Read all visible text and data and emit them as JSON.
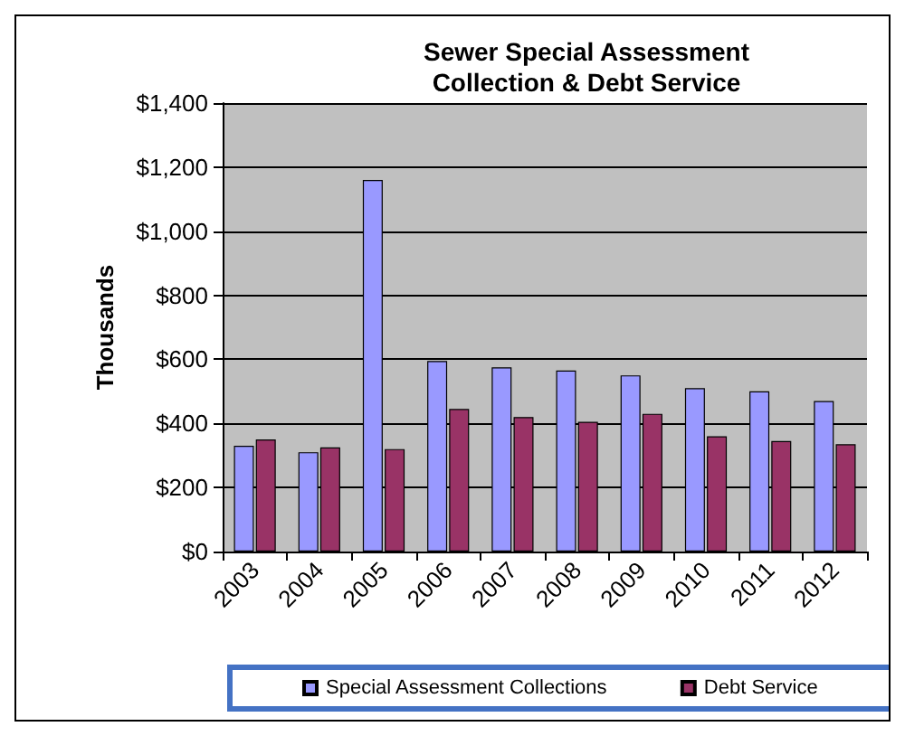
{
  "chart_data": {
    "type": "bar",
    "title": "Sewer Special Assessment\nCollection & Debt Service",
    "ylabel": "Thousands",
    "categories": [
      "2003",
      "2004",
      "2005",
      "2006",
      "2007",
      "2008",
      "2009",
      "2010",
      "2011",
      "2012"
    ],
    "series": [
      {
        "name": "Special Assessment Collections",
        "color": "#9999ff",
        "values": [
          330,
          310,
          1160,
          595,
          575,
          565,
          550,
          510,
          500,
          470
        ]
      },
      {
        "name": "Debt Service",
        "color": "#993366",
        "values": [
          350,
          325,
          320,
          445,
          420,
          405,
          430,
          360,
          345,
          335
        ]
      }
    ],
    "ylim": [
      0,
      1400
    ],
    "yticks": [
      {
        "value": 0,
        "label": "$0"
      },
      {
        "value": 200,
        "label": "$200"
      },
      {
        "value": 400,
        "label": "$400"
      },
      {
        "value": 600,
        "label": "$600"
      },
      {
        "value": 800,
        "label": "$800"
      },
      {
        "value": 1000,
        "label": "$1,000"
      },
      {
        "value": 1200,
        "label": "$1,200"
      },
      {
        "value": 1400,
        "label": "$1,400"
      }
    ],
    "grid": "y",
    "legend": "bottom"
  }
}
